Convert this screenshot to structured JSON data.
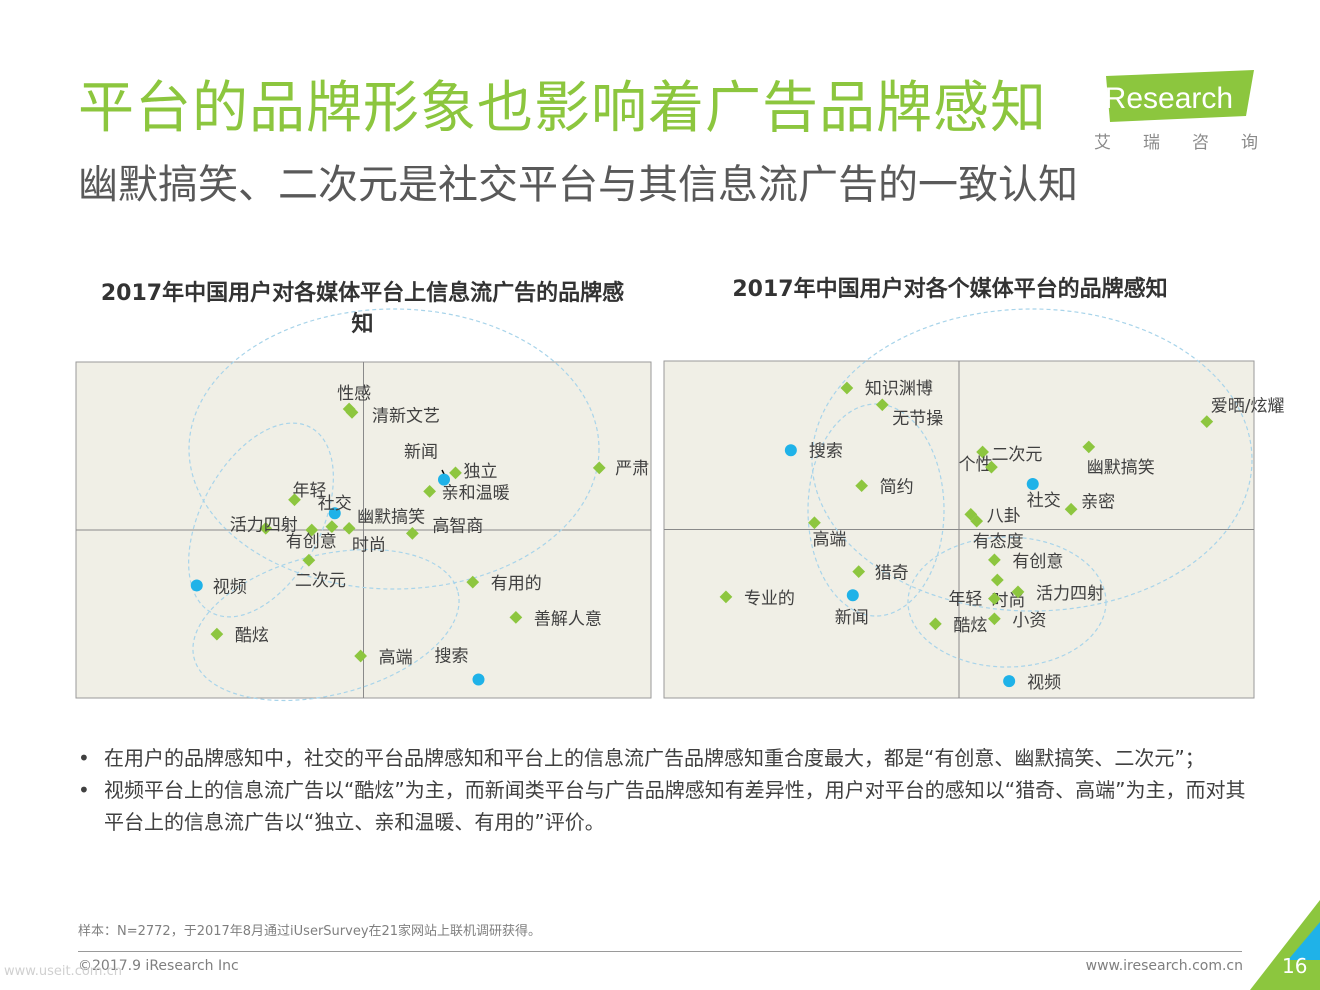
{
  "header": {
    "title": "平台的品牌形象也影响着广告品牌感知",
    "subtitle": "幽默搞笑、二次元是社交平台与其信息流广告的一致认知"
  },
  "logo": {
    "brand": "iResearch",
    "chinese": [
      "艾",
      "瑞",
      "咨",
      "询"
    ]
  },
  "colors": {
    "title_green": "#8cc63e",
    "platform_blue": "#1fb2e8",
    "attribute_green": "#8dc63f",
    "plot_bg": "#f0efe6",
    "ellipse_blue": "#a8d4ea"
  },
  "chart_data": [
    {
      "type": "scatter",
      "title": "2017年中国用户对各媒体平台上信息流广告的品牌感知",
      "xlim": [
        -1,
        1
      ],
      "ylim": [
        -1,
        1
      ],
      "grid": false,
      "series": [
        {
          "marker": "circle",
          "points": [
            {
              "label": "社交",
              "x": -0.1,
              "y": 0.1
            },
            {
              "label": "新闻",
              "x": 0.28,
              "y": 0.3
            },
            {
              "label": "视频",
              "x": -0.58,
              "y": -0.33
            },
            {
              "label": "搜索",
              "x": 0.4,
              "y": -0.89
            }
          ]
        },
        {
          "marker": "diamond",
          "points": [
            {
              "label": "性感",
              "x": -0.05,
              "y": 0.72
            },
            {
              "label": "清新文艺",
              "x": -0.04,
              "y": 0.7
            },
            {
              "label": "独立",
              "x": 0.32,
              "y": 0.34
            },
            {
              "label": "亲和温暖",
              "x": 0.23,
              "y": 0.23
            },
            {
              "label": "严肃",
              "x": 0.82,
              "y": 0.37
            },
            {
              "label": "年轻",
              "x": -0.24,
              "y": 0.18
            },
            {
              "label": "活力四射",
              "x": -0.34,
              "y": 0.01
            },
            {
              "label": "有创意",
              "x": -0.18,
              "y": 0.0
            },
            {
              "label": "时尚",
              "x": -0.11,
              "y": 0.02
            },
            {
              "label": "幽默搞笑",
              "x": -0.05,
              "y": 0.01
            },
            {
              "label": "高智商",
              "x": 0.17,
              "y": -0.02
            },
            {
              "label": "二次元",
              "x": -0.19,
              "y": -0.18
            },
            {
              "label": "酷炫",
              "x": -0.51,
              "y": -0.62
            },
            {
              "label": "有用的",
              "x": 0.38,
              "y": -0.31
            },
            {
              "label": "善解人意",
              "x": 0.53,
              "y": -0.52
            },
            {
              "label": "高端",
              "x": -0.01,
              "y": -0.75
            }
          ]
        }
      ]
    },
    {
      "type": "scatter",
      "title": "2017年中国用户对各个媒体平台的品牌感知",
      "xlim": [
        -1,
        1
      ],
      "ylim": [
        -1,
        1
      ],
      "grid": false,
      "series": [
        {
          "marker": "circle",
          "points": [
            {
              "label": "搜索",
              "x": -0.57,
              "y": 0.47
            },
            {
              "label": "社交",
              "x": 0.25,
              "y": 0.27
            },
            {
              "label": "新闻",
              "x": -0.36,
              "y": -0.39
            },
            {
              "label": "视频",
              "x": 0.17,
              "y": -0.9
            }
          ]
        },
        {
          "marker": "diamond",
          "points": [
            {
              "label": "知识渊博",
              "x": -0.38,
              "y": 0.84
            },
            {
              "label": "无节操",
              "x": -0.26,
              "y": 0.74
            },
            {
              "label": "爱晒/炫耀",
              "x": 0.84,
              "y": 0.64
            },
            {
              "label": "简约",
              "x": -0.33,
              "y": 0.26
            },
            {
              "label": "个性",
              "x": 0.08,
              "y": 0.46
            },
            {
              "label": "二次元",
              "x": 0.11,
              "y": 0.37
            },
            {
              "label": "幽默搞笑",
              "x": 0.44,
              "y": 0.49
            },
            {
              "label": "八卦",
              "x": 0.04,
              "y": 0.09
            },
            {
              "label": "有态度",
              "x": 0.06,
              "y": 0.05
            },
            {
              "label": "亲密",
              "x": 0.38,
              "y": 0.12
            },
            {
              "label": "高端",
              "x": -0.49,
              "y": 0.04
            },
            {
              "label": "猎奇",
              "x": -0.34,
              "y": -0.25
            },
            {
              "label": "专业的",
              "x": -0.79,
              "y": -0.4
            },
            {
              "label": "有创意",
              "x": 0.12,
              "y": -0.18
            },
            {
              "label": "时尚",
              "x": 0.13,
              "y": -0.3
            },
            {
              "label": "活力四射",
              "x": 0.2,
              "y": -0.37
            },
            {
              "label": "年轻",
              "x": 0.12,
              "y": -0.41
            },
            {
              "label": "小资",
              "x": 0.12,
              "y": -0.53
            },
            {
              "label": "酷炫",
              "x": -0.08,
              "y": -0.56
            }
          ]
        }
      ]
    }
  ],
  "bullets": [
    "在用户的品牌感知中，社交的平台品牌感知和平台上的信息流广告品牌感知重合度最大，都是“有创意、幽默搞笑、二次元”；",
    "视频平台上的信息流广告以“酷炫”为主，而新闻类平台与广告品牌感知有差异性，用户对平台的感知以“猎奇、高端”为主，而对其平台上的信息流广告以“独立、亲和温暖、有用的”评价。"
  ],
  "bullet_symbol": "•",
  "footer": {
    "note": "样本：N=2772，于2017年8月通过iUserSurvey在21家网站上联机调研获得。",
    "copyright": "©2017.9 iResearch Inc",
    "website": "www.iresearch.com.cn",
    "page": "16",
    "watermark": "www.useit.com.cn"
  }
}
